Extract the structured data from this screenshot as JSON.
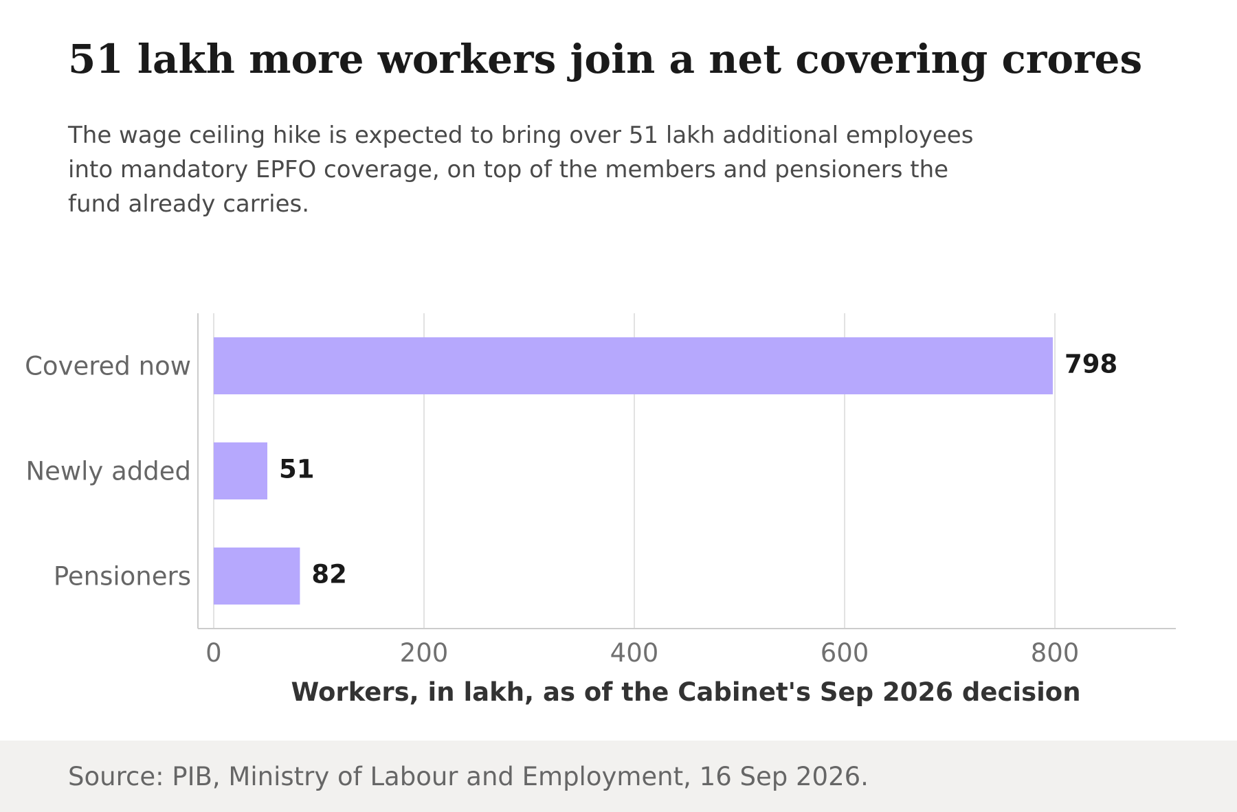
{
  "header": {
    "title": "51 lakh more workers join a net covering crores",
    "subtitle": "The wage ceiling hike is expected to bring over 51 lakh additional employees into mandatory EPFO coverage, on top of the members and pensioners the fund already carries."
  },
  "footer": {
    "source": "Source: PIB, Ministry of Labour and Employment, 16 Sep 2026."
  },
  "colors": {
    "bar": "#b6a8fd",
    "grid": "#e2e2e2",
    "axis": "#cccccc",
    "category_text": "#666666",
    "value_text": "#1a1a1a",
    "xlabel_text": "#333333"
  },
  "chart_data": {
    "type": "bar",
    "orientation": "horizontal",
    "categories": [
      "Covered now",
      "Newly added",
      "Pensioners"
    ],
    "values": [
      798,
      51,
      82
    ],
    "value_labels": [
      "798",
      "51",
      "82"
    ],
    "xlabel": "Workers, in lakh, as of the Cabinet's Sep 2026 decision",
    "ylabel": "",
    "xlim": [
      -15,
      915
    ],
    "xticks": [
      0,
      200,
      400,
      600,
      800
    ],
    "xtick_labels": [
      "0",
      "200",
      "400",
      "600",
      "800"
    ],
    "grid": "vertical",
    "legend": "none"
  }
}
